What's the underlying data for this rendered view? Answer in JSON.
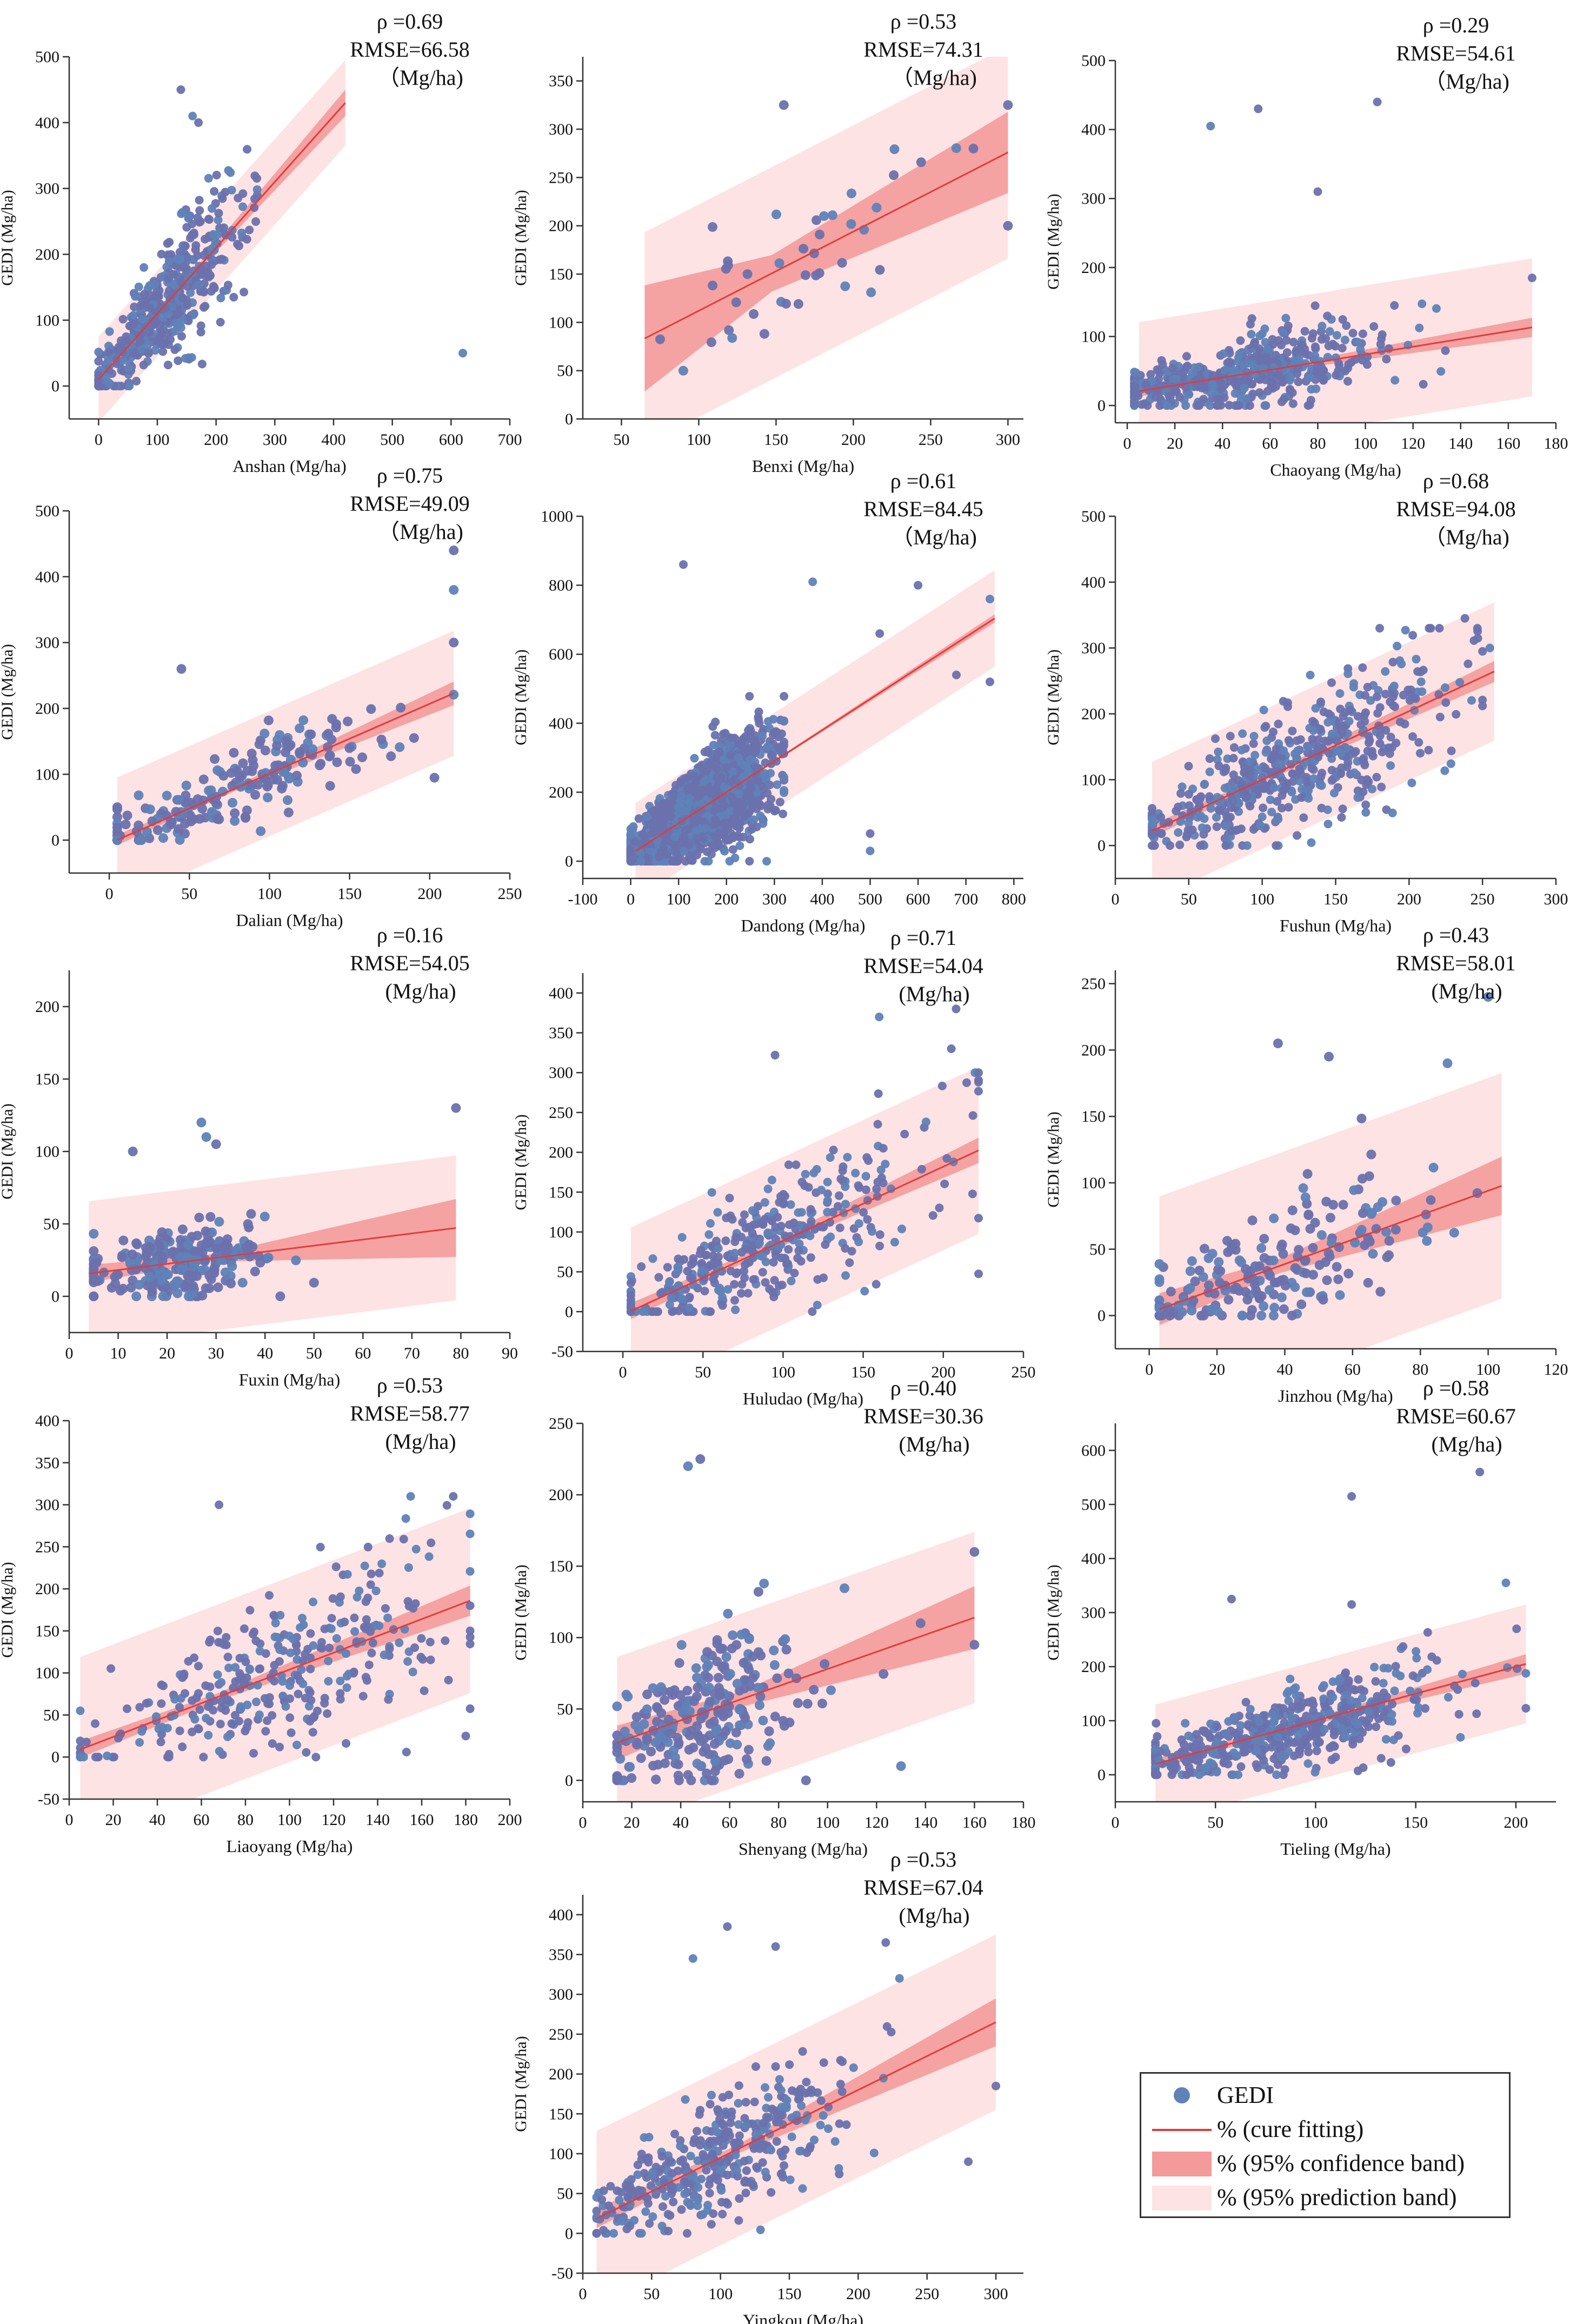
{
  "colors": {
    "point": "#5f82b8",
    "point_dense": "#6a71ad",
    "fit_line": "#e03d3d",
    "confidence_band": "#f49a9a",
    "prediction_band": "#fde3e3",
    "axis": "#333333",
    "text": "#111111"
  },
  "legend": {
    "items": [
      {
        "label": "GEDI",
        "icon": "point-marker"
      },
      {
        "label": "% (cure fitting)",
        "icon": "line-marker"
      },
      {
        "label": "% (95% confidence band)",
        "icon": "dark-band-swatch"
      },
      {
        "label": "% (95% prediction band)",
        "icon": "light-band-swatch"
      }
    ]
  },
  "chart_data": [
    {
      "type": "scatter",
      "region": "Anshan",
      "xlabel": "Anshan (Mg/ha)",
      "ylabel": "GEDI (Mg/ha)",
      "rho_label": "ρ =0.69",
      "rmse_label": "RMSE=66.58",
      "unit_label": "（Mg/ha)",
      "xlim": [
        -50,
        700
      ],
      "ylim": [
        -50,
        500
      ],
      "xticks": [
        0,
        100,
        200,
        300,
        400,
        500,
        600,
        700
      ],
      "yticks": [
        0,
        100,
        200,
        300,
        400,
        500
      ],
      "fit": {
        "slope": 1.0,
        "intercept": 10,
        "x_range": [
          0,
          420
        ]
      },
      "conf_half_width": [
        8,
        20
      ],
      "pred_half_width": 65,
      "n_points": 480,
      "x_center": 115,
      "x_spread": 70,
      "noise": 50,
      "x_min": 0,
      "x_max": 270,
      "y_min": 0,
      "y_max": 450,
      "extra_points": [
        [
          620,
          50
        ],
        [
          170,
          400
        ],
        [
          140,
          450
        ],
        [
          160,
          410
        ]
      ]
    },
    {
      "type": "scatter",
      "region": "Benxi",
      "xlabel": "Benxi (Mg/ha)",
      "ylabel": "GEDI (Mg/ha)",
      "rho_label": "ρ =0.53",
      "rmse_label": "RMSE=74.31",
      "unit_label": "（Mg/ha)",
      "xlim": [
        25,
        310
      ],
      "ylim": [
        0,
        375
      ],
      "xticks": [
        50,
        100,
        150,
        200,
        250,
        300
      ],
      "yticks": [
        0,
        50,
        100,
        150,
        200,
        250,
        300,
        350
      ],
      "fit": {
        "slope": 0.82,
        "intercept": 30,
        "x_range": [
          65,
          300
        ]
      },
      "conf_half_width": [
        55,
        42
      ],
      "pred_half_width": 110,
      "n_points": 40,
      "x_center": 175,
      "x_spread": 55,
      "noise": 55,
      "x_min": 75,
      "x_max": 300,
      "y_min": 30,
      "y_max": 330,
      "extra_points": [
        [
          155,
          325
        ],
        [
          300,
          325
        ],
        [
          90,
          50
        ],
        [
          300,
          200
        ]
      ]
    },
    {
      "type": "scatter",
      "region": "Chaoyang",
      "xlabel": "Chaoyang (Mg/ha)",
      "ylabel": "GEDI (Mg/ha)",
      "rho_label": "ρ =0.29",
      "rmse_label": "RMSE=54.61",
      "unit_label": "（Mg/ha)",
      "xlim": [
        -5,
        180
      ],
      "ylim": [
        -25,
        500
      ],
      "xticks": [
        0,
        20,
        40,
        60,
        80,
        100,
        120,
        140,
        160,
        180
      ],
      "yticks": [
        0,
        100,
        200,
        300,
        400,
        500
      ],
      "fit": {
        "slope": 0.56,
        "intercept": 18,
        "x_range": [
          5,
          170
        ]
      },
      "conf_half_width": [
        8,
        14
      ],
      "pred_half_width": 100,
      "n_points": 520,
      "x_center": 45,
      "x_spread": 30,
      "noise": 35,
      "x_min": 3,
      "x_max": 140,
      "y_min": 0,
      "y_max": 440,
      "extra_points": [
        [
          105,
          440
        ],
        [
          55,
          430
        ],
        [
          35,
          405
        ],
        [
          170,
          185
        ],
        [
          80,
          310
        ]
      ]
    },
    {
      "type": "scatter",
      "region": "Dalian",
      "xlabel": "Dalian (Mg/ha)",
      "ylabel": "GEDI (Mg/ha)",
      "rho_label": "ρ =0.75",
      "rmse_label": "RMSE=49.09",
      "unit_label": "（Mg/ha)",
      "xlim": [
        -25,
        250
      ],
      "ylim": [
        -50,
        500
      ],
      "xticks": [
        0,
        50,
        100,
        150,
        200,
        250
      ],
      "yticks": [
        0,
        100,
        200,
        300,
        400,
        500
      ],
      "fit": {
        "slope": 1.06,
        "intercept": -5,
        "x_range": [
          5,
          215
        ]
      },
      "conf_half_width": [
        8,
        18
      ],
      "pred_half_width": 95,
      "n_points": 200,
      "x_center": 80,
      "x_spread": 50,
      "noise": 40,
      "x_min": 5,
      "x_max": 215,
      "y_min": 0,
      "y_max": 300,
      "extra_points": [
        [
          215,
          440
        ],
        [
          215,
          380
        ],
        [
          45,
          260
        ],
        [
          215,
          300
        ]
      ]
    },
    {
      "type": "scatter",
      "region": "Dandong",
      "xlabel": "Dandong (Mg/ha)",
      "ylabel": "GEDI (Mg/ha)",
      "rho_label": "ρ =0.61",
      "rmse_label": "RMSE=84.45",
      "unit_label": "（Mg/ha)",
      "xlim": [
        -100,
        820
      ],
      "ylim": [
        -50,
        1000
      ],
      "xticks": [
        -100,
        0,
        100,
        200,
        300,
        400,
        500,
        600,
        700,
        800
      ],
      "yticks": [
        0,
        200,
        400,
        600,
        800,
        1000
      ],
      "fit": {
        "slope": 0.9,
        "intercept": 20,
        "x_range": [
          10,
          760
        ]
      },
      "conf_half_width": [
        5,
        12
      ],
      "pred_half_width": 140,
      "n_points": 2000,
      "x_center": 140,
      "x_spread": 75,
      "noise": 75,
      "x_min": 0,
      "x_max": 320,
      "y_min": 0,
      "y_max": 500,
      "extra_points": [
        [
          110,
          860
        ],
        [
          380,
          810
        ],
        [
          520,
          660
        ],
        [
          600,
          800
        ],
        [
          750,
          760
        ],
        [
          750,
          520
        ],
        [
          500,
          80
        ],
        [
          500,
          30
        ],
        [
          680,
          540
        ]
      ]
    },
    {
      "type": "scatter",
      "region": "Fushun",
      "xlabel": "Fushun (Mg/ha)",
      "ylabel": "GEDI (Mg/ha)",
      "rho_label": "ρ =0.68",
      "rmse_label": "RMSE=94.08",
      "unit_label": "（Mg/ha)",
      "xlim": [
        0,
        300
      ],
      "ylim": [
        -50,
        500
      ],
      "xticks": [
        0,
        50,
        100,
        150,
        200,
        250,
        300
      ],
      "yticks": [
        0,
        100,
        200,
        300,
        400,
        500
      ],
      "fit": {
        "slope": 1.04,
        "intercept": -4,
        "x_range": [
          25,
          258
        ]
      },
      "conf_half_width": [
        10,
        16
      ],
      "pred_half_width": 105,
      "n_points": 520,
      "x_center": 120,
      "x_spread": 55,
      "noise": 55,
      "x_min": 25,
      "x_max": 250,
      "y_min": 0,
      "y_max": 330,
      "extra_points": [
        [
          238,
          345
        ],
        [
          180,
          330
        ],
        [
          255,
          300
        ]
      ]
    },
    {
      "type": "scatter",
      "region": "Fuxin",
      "xlabel": "Fuxin (Mg/ha)",
      "ylabel": "GEDI (Mg/ha)",
      "rho_label": "ρ =0.16",
      "rmse_label": "RMSE=54.05",
      "unit_label": "(Mg/ha)",
      "xlim": [
        0,
        90
      ],
      "ylim": [
        -25,
        225
      ],
      "xticks": [
        0,
        10,
        20,
        30,
        40,
        50,
        60,
        70,
        80,
        90
      ],
      "yticks": [
        0,
        50,
        100,
        150,
        200
      ],
      "fit": {
        "slope": 0.42,
        "intercept": 14,
        "x_range": [
          4,
          79
        ]
      },
      "conf_half_width": [
        6,
        20
      ],
      "pred_half_width": 50,
      "n_points": 260,
      "x_center": 22,
      "x_spread": 9,
      "noise": 15,
      "x_min": 5,
      "x_max": 50,
      "y_min": 0,
      "y_max": 80,
      "extra_points": [
        [
          79,
          130
        ],
        [
          27,
          120
        ],
        [
          30,
          105
        ],
        [
          13,
          100
        ],
        [
          28,
          110
        ]
      ]
    },
    {
      "type": "scatter",
      "region": "Huludao",
      "xlabel": "Huludao (Mg/ha)",
      "ylabel": "GEDI (Mg/ha)",
      "rho_label": "ρ =0.71",
      "rmse_label": "RMSE=54.04",
      "unit_label": "(Mg/ha)",
      "xlim": [
        -25,
        250
      ],
      "ylim": [
        -50,
        425
      ],
      "xticks": [
        0,
        50,
        100,
        150,
        200,
        250
      ],
      "yticks": [
        -50,
        0,
        50,
        100,
        150,
        200,
        250,
        300,
        350,
        400
      ],
      "fit": {
        "slope": 0.93,
        "intercept": -4,
        "x_range": [
          5,
          222
        ]
      },
      "conf_half_width": [
        10,
        16
      ],
      "pred_half_width": 105,
      "n_points": 380,
      "x_center": 85,
      "x_spread": 55,
      "noise": 50,
      "x_min": 5,
      "x_max": 222,
      "y_min": 0,
      "y_max": 300,
      "extra_points": [
        [
          208,
          380
        ],
        [
          160,
          370
        ],
        [
          205,
          330
        ],
        [
          95,
          322
        ]
      ]
    },
    {
      "type": "scatter",
      "region": "Jinzhou",
      "xlabel": "Jinzhou (Mg/ha)",
      "ylabel": "GEDI (Mg/ha)",
      "rho_label": "ρ =0.43",
      "rmse_label": "RMSE=58.01",
      "unit_label": "(Mg/ha)",
      "xlim": [
        -10,
        120
      ],
      "ylim": [
        -25,
        260
      ],
      "xticks": [
        0,
        20,
        40,
        60,
        80,
        100,
        120
      ],
      "yticks": [
        0,
        50,
        100,
        150,
        200,
        250
      ],
      "fit": {
        "slope": 0.92,
        "intercept": 2,
        "x_range": [
          3,
          104
        ]
      },
      "conf_half_width": [
        12,
        22
      ],
      "pred_half_width": 85,
      "n_points": 210,
      "x_center": 35,
      "x_spread": 25,
      "noise": 30,
      "x_min": 3,
      "x_max": 104,
      "y_min": 0,
      "y_max": 200,
      "extra_points": [
        [
          100,
          240
        ],
        [
          38,
          205
        ],
        [
          53,
          195
        ],
        [
          88,
          190
        ]
      ]
    },
    {
      "type": "scatter",
      "region": "Liaoyang",
      "xlabel": "Liaoyang (Mg/ha)",
      "ylabel": "GEDI (Mg/ha)",
      "rho_label": "ρ =0.53",
      "rmse_label": "RMSE=58.77",
      "unit_label": "(Mg/ha)",
      "xlim": [
        0,
        200
      ],
      "ylim": [
        -50,
        400
      ],
      "xticks": [
        0,
        20,
        40,
        60,
        80,
        100,
        120,
        140,
        160,
        180,
        200
      ],
      "yticks": [
        -50,
        0,
        50,
        100,
        150,
        200,
        250,
        300,
        350,
        400
      ],
      "fit": {
        "slope": 1.0,
        "intercept": 4,
        "x_range": [
          5,
          182
        ]
      },
      "conf_half_width": [
        10,
        18
      ],
      "pred_half_width": 110,
      "n_points": 330,
      "x_center": 95,
      "x_spread": 40,
      "noise": 55,
      "x_min": 5,
      "x_max": 182,
      "y_min": 0,
      "y_max": 310,
      "extra_points": [
        [
          155,
          310
        ],
        [
          68,
          300
        ],
        [
          180,
          25
        ],
        [
          5,
          0
        ],
        [
          12,
          0
        ]
      ]
    },
    {
      "type": "scatter",
      "region": "Shenyang",
      "xlabel": "Shenyang (Mg/ha)",
      "ylabel": "GEDI (Mg/ha)",
      "rho_label": "ρ =0.40",
      "rmse_label": "RMSE=30.36",
      "unit_label": "(Mg/ha)",
      "xlim": [
        0,
        180
      ],
      "ylim": [
        -15,
        250
      ],
      "xticks": [
        0,
        20,
        40,
        60,
        80,
        100,
        120,
        140,
        160,
        180
      ],
      "yticks": [
        0,
        50,
        100,
        150,
        200,
        250
      ],
      "fit": {
        "slope": 0.6,
        "intercept": 18,
        "x_range": [
          14,
          160
        ]
      },
      "conf_half_width": [
        12,
        22
      ],
      "pred_half_width": 60,
      "n_points": 260,
      "x_center": 50,
      "x_spread": 20,
      "noise": 35,
      "x_min": 14,
      "x_max": 160,
      "y_min": 0,
      "y_max": 160,
      "extra_points": [
        [
          48,
          225
        ],
        [
          43,
          220
        ],
        [
          160,
          160
        ],
        [
          160,
          95
        ],
        [
          130,
          10
        ],
        [
          138,
          110
        ]
      ]
    },
    {
      "type": "scatter",
      "region": "Tieling",
      "xlabel": "Tieling (Mg/ha)",
      "ylabel": "GEDI (Mg/ha)",
      "rho_label": "ρ =0.58",
      "rmse_label": "RMSE=60.67",
      "unit_label": "(Mg/ha)",
      "xlim": [
        0,
        220
      ],
      "ylim": [
        -50,
        650
      ],
      "xticks": [
        0,
        50,
        100,
        150,
        200
      ],
      "yticks": [
        0,
        100,
        200,
        300,
        400,
        500,
        600
      ],
      "fit": {
        "slope": 1.0,
        "intercept": 0,
        "x_range": [
          20,
          205
        ]
      },
      "conf_half_width": [
        10,
        18
      ],
      "pred_half_width": 110,
      "n_points": 520,
      "x_center": 80,
      "x_spread": 40,
      "noise": 45,
      "x_min": 20,
      "x_max": 205,
      "y_min": 0,
      "y_max": 270,
      "extra_points": [
        [
          118,
          515
        ],
        [
          182,
          560
        ],
        [
          195,
          355
        ],
        [
          58,
          325
        ],
        [
          118,
          315
        ]
      ]
    },
    {
      "type": "scatter",
      "region": "Yingkou",
      "xlabel": "Yingkou (Mg/ha)",
      "ylabel": "GEDI (Mg/ha)",
      "rho_label": "ρ =0.53",
      "rmse_label": "RMSE=67.04",
      "unit_label": "(Mg/ha)",
      "xlim": [
        0,
        320
      ],
      "ylim": [
        -50,
        425
      ],
      "xticks": [
        0,
        50,
        100,
        150,
        200,
        250,
        300
      ],
      "yticks": [
        -50,
        0,
        50,
        100,
        150,
        200,
        250,
        300,
        350,
        400
      ],
      "fit": {
        "slope": 0.85,
        "intercept": 10,
        "x_range": [
          10,
          300
        ]
      },
      "conf_half_width": [
        12,
        30
      ],
      "pred_half_width": 110,
      "n_points": 380,
      "x_center": 100,
      "x_spread": 45,
      "noise": 50,
      "x_min": 10,
      "x_max": 300,
      "y_min": 0,
      "y_max": 320,
      "extra_points": [
        [
          105,
          385
        ],
        [
          80,
          345
        ],
        [
          140,
          360
        ],
        [
          220,
          365
        ],
        [
          230,
          320
        ],
        [
          280,
          90
        ],
        [
          300,
          185
        ]
      ]
    }
  ]
}
